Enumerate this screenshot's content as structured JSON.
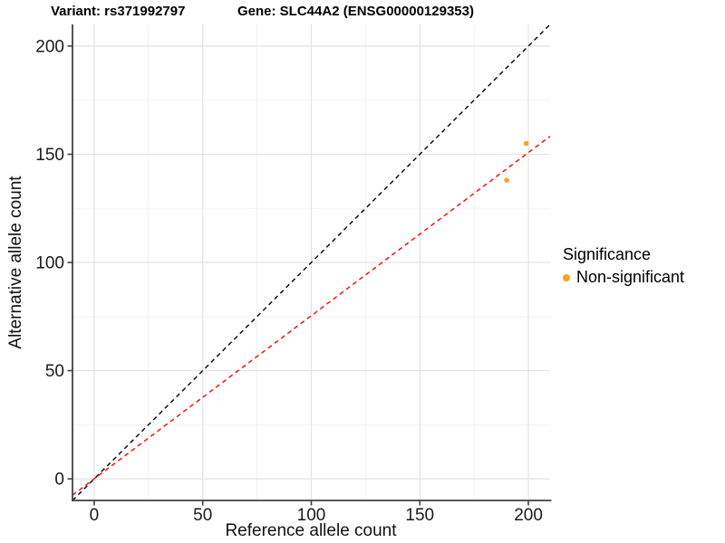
{
  "chart_data": {
    "type": "scatter",
    "title_left": "Variant: rs371992797",
    "title_right": "Gene: SLC44A2 (ENSG00000129353)",
    "xlabel": "Reference allele count",
    "ylabel": "Alternative allele count",
    "xlim": [
      -10,
      210
    ],
    "ylim": [
      -10,
      210
    ],
    "x_ticks": [
      0,
      50,
      100,
      150,
      200
    ],
    "y_ticks": [
      0,
      50,
      100,
      150,
      200
    ],
    "x_minor_ticks": [
      25,
      75,
      125,
      175
    ],
    "y_minor_ticks": [
      25,
      75,
      125,
      175
    ],
    "grid": true,
    "points": [
      {
        "x": 199,
        "y": 155,
        "series": "Non-significant"
      },
      {
        "x": 190,
        "y": 138,
        "series": "Non-significant"
      }
    ],
    "lines": [
      {
        "name": "identity-line",
        "slope": 1,
        "intercept": 0,
        "color": "#000000",
        "dashed": true
      },
      {
        "name": "fit-line",
        "slope": 0.754,
        "intercept": 0,
        "color": "#FF0000",
        "dashed": true
      }
    ],
    "legend": {
      "position": "right",
      "title": "Significance",
      "items": [
        {
          "label": "Non-significant",
          "color": "#FAA41E"
        }
      ]
    },
    "colors": {
      "point": "#FAA41E",
      "grid_major": "#E3E3E3",
      "grid_minor": "#F1F1F1",
      "axis_line": "#404040",
      "tick_text": "#1A1A1A",
      "background": "#FFFFFF"
    }
  }
}
